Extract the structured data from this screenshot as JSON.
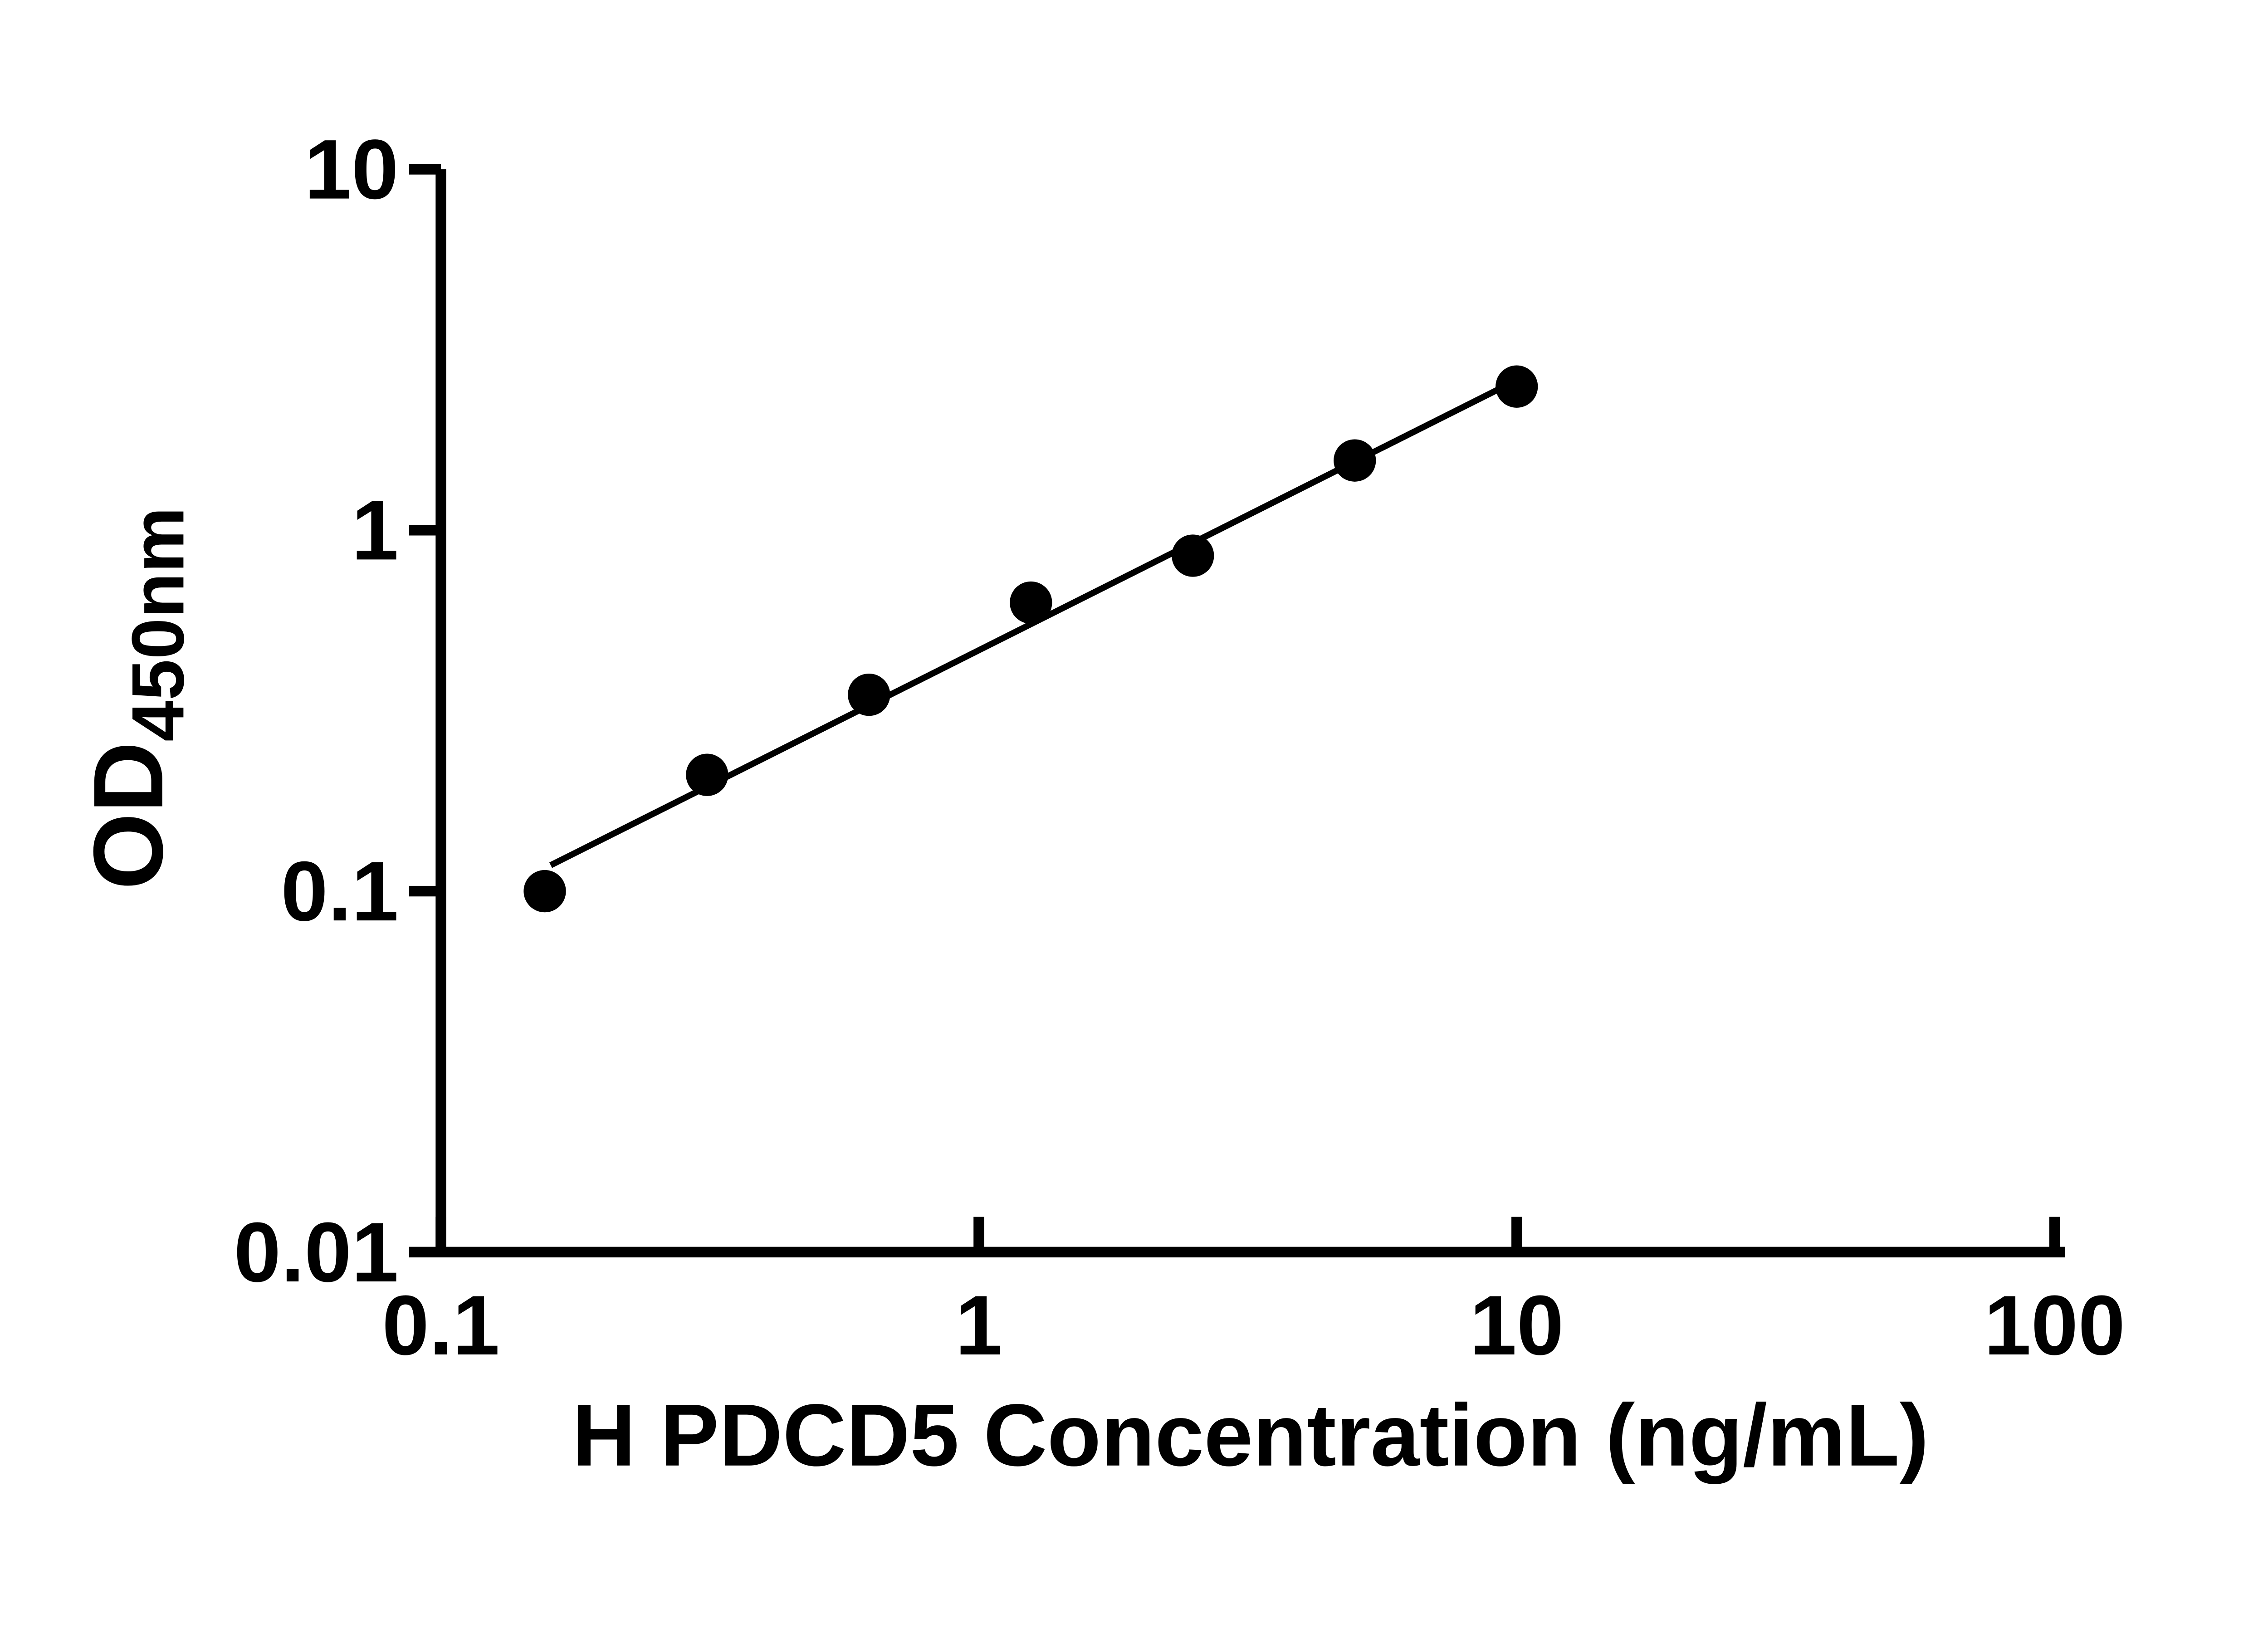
{
  "figure": {
    "background_color": "#ffffff",
    "ink_color": "#000000"
  },
  "chart_data": {
    "type": "scatter",
    "title": "",
    "xlabel": "H PDCD5 Concentration (ng/mL)",
    "ylabel_main": "OD",
    "ylabel_sub": "450nm",
    "x_scale": "log",
    "y_scale": "log",
    "xlim": [
      0.1,
      100
    ],
    "ylim": [
      0.01,
      10
    ],
    "grid": "off",
    "legend": "none",
    "x_ticks": [
      {
        "value": 0.1,
        "label": "0.1"
      },
      {
        "value": 1,
        "label": "1"
      },
      {
        "value": 10,
        "label": "10"
      },
      {
        "value": 100,
        "label": "100"
      }
    ],
    "y_ticks": [
      {
        "value": 0.01,
        "label": "0.01"
      },
      {
        "value": 0.1,
        "label": "0.1"
      },
      {
        "value": 1,
        "label": "1"
      },
      {
        "value": 10,
        "label": "10"
      }
    ],
    "series": [
      {
        "name": "linear-fit-line",
        "type": "line",
        "color": "#000000",
        "stroke_width": 3.5,
        "x": [
          0.16,
          10.6
        ],
        "y": [
          0.118,
          2.72
        ]
      },
      {
        "name": "standard-curve-points",
        "type": "scatter",
        "marker": "filled-circle",
        "color": "#000000",
        "marker_radius": 12,
        "x": [
          0.156,
          0.3125,
          0.625,
          1.25,
          2.5,
          5,
          10
        ],
        "y": [
          0.1,
          0.21,
          0.35,
          0.63,
          0.85,
          1.56,
          2.5
        ]
      }
    ]
  }
}
